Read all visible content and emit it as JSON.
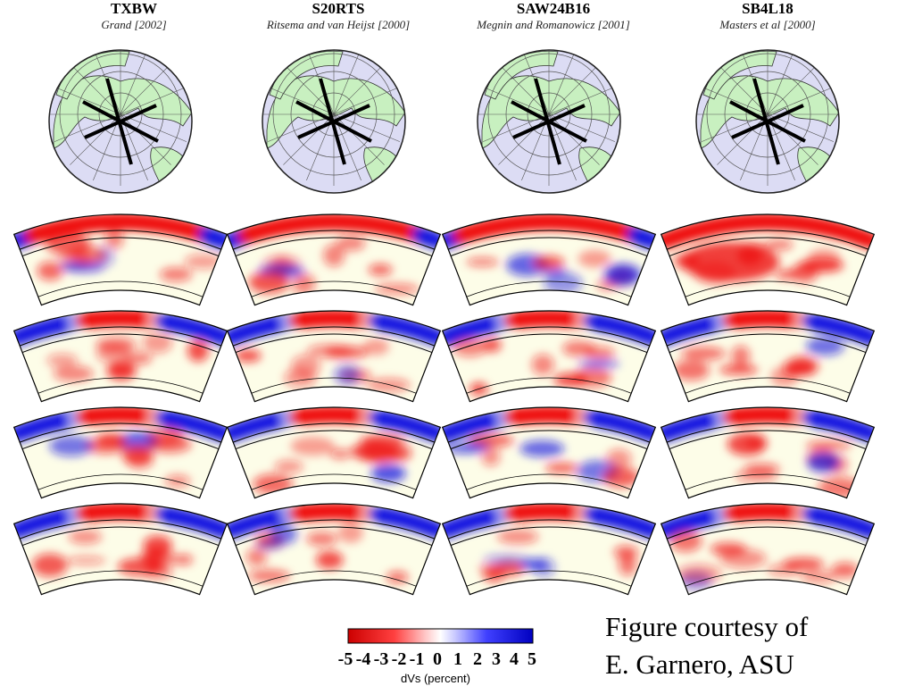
{
  "models": [
    {
      "name": "TXBW",
      "reference": "Grand [2002]"
    },
    {
      "name": "S20RTS",
      "reference": "Ritsema and van Heijst [2000]"
    },
    {
      "name": "SAW24B16",
      "reference": "Megnin and Romanowicz [2001]"
    },
    {
      "name": "SB4L18",
      "reference": "Masters et al [2000]"
    }
  ],
  "colorbar": {
    "ticks": [
      "-5",
      "-4",
      "-3",
      "-2",
      "-1",
      "0",
      "1",
      "2",
      "3",
      "4",
      "5"
    ],
    "label": "dVs (percent)",
    "min": -5,
    "max": 5,
    "low_color": "#e00000",
    "mid_color": "#ffffff",
    "high_color": "#0000d8"
  },
  "credit": {
    "line1": "Figure courtesy of",
    "line2": "E. Garnero, ASU"
  },
  "colors": {
    "land": "#c8f0c0",
    "ocean": "#dcdcf4",
    "grid": "#555555",
    "mantle": "#fdfde8"
  }
}
